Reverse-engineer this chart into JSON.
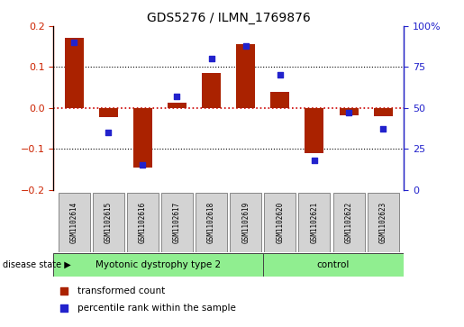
{
  "title": "GDS5276 / ILMN_1769876",
  "samples": [
    "GSM1102614",
    "GSM1102615",
    "GSM1102616",
    "GSM1102617",
    "GSM1102618",
    "GSM1102619",
    "GSM1102620",
    "GSM1102621",
    "GSM1102622",
    "GSM1102623"
  ],
  "transformed_count": [
    0.172,
    -0.022,
    -0.145,
    0.012,
    0.085,
    0.156,
    0.04,
    -0.11,
    -0.018,
    -0.02
  ],
  "percentile_rank": [
    90,
    35,
    15,
    57,
    80,
    88,
    70,
    18,
    47,
    37
  ],
  "bar_color": "#aa2200",
  "dot_color": "#2222cc",
  "ylim_left": [
    -0.2,
    0.2
  ],
  "ylim_right": [
    0,
    100
  ],
  "yticks_left": [
    -0.2,
    -0.1,
    0.0,
    0.1,
    0.2
  ],
  "yticks_right": [
    0,
    25,
    50,
    75,
    100
  ],
  "ytick_labels_right": [
    "0",
    "25",
    "50",
    "75",
    "100%"
  ],
  "disease_groups": [
    {
      "label": "Myotonic dystrophy type 2",
      "start": 0,
      "end": 6,
      "color": "#90ee90"
    },
    {
      "label": "control",
      "start": 6,
      "end": 10,
      "color": "#90ee90"
    }
  ],
  "disease_state_label": "disease state",
  "legend_items": [
    {
      "label": "transformed count",
      "color": "#aa2200"
    },
    {
      "label": "percentile rank within the sample",
      "color": "#2222cc"
    }
  ],
  "hline_zero_color": "#cc0000",
  "bar_width": 0.55,
  "box_color": "#d3d3d3",
  "box_edge_color": "#888888"
}
